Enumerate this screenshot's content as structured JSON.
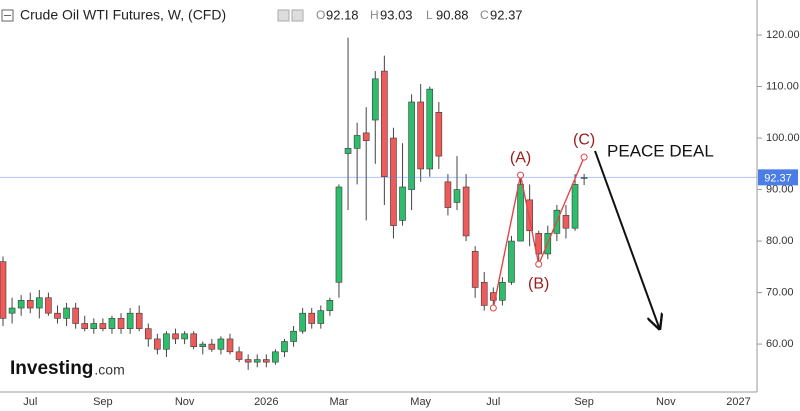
{
  "chart_data": {
    "type": "candlestick",
    "title": "Crude Oil WTI Futures, W, (CFD)",
    "ohlc_labels": [
      "O",
      "H",
      "L",
      "C"
    ],
    "watermark": [
      "Investing",
      ".com"
    ],
    "categories": [
      null,
      null,
      null,
      "Jul",
      null,
      null,
      null,
      null,
      null,
      null,
      null,
      "Sep",
      null,
      null,
      null,
      null,
      null,
      null,
      null,
      null,
      "Nov",
      null,
      null,
      null,
      null,
      null,
      null,
      null,
      null,
      "2026",
      null,
      null,
      null,
      null,
      null,
      null,
      null,
      "Mar",
      null,
      null,
      null,
      null,
      null,
      null,
      null,
      null,
      "May",
      null,
      null,
      null,
      null,
      null,
      null,
      null,
      "Jul",
      null,
      null,
      null,
      null,
      null,
      null,
      null,
      null,
      null,
      "Sep",
      null,
      null,
      null,
      null,
      null,
      null,
      null,
      null,
      "Nov",
      null,
      null,
      null,
      null,
      null,
      null,
      null,
      "2027",
      null,
      null
    ],
    "series": [
      {
        "up_color": "#2ebd6b",
        "down_color": "#ef5a5a",
        "open": [
          76,
          66,
          67,
          68.5,
          67,
          69,
          66,
          65,
          67,
          64,
          63,
          64,
          63,
          65,
          63,
          66,
          63,
          61,
          59,
          62,
          61,
          62,
          59.5,
          60,
          59,
          61,
          58.5,
          57,
          56.5,
          57,
          56.5,
          58.5,
          60.5,
          62.5,
          66,
          64,
          66.5,
          72,
          97,
          98,
          101,
          103.5,
          113,
          100,
          84,
          90,
          107,
          94,
          105,
          91.5,
          87.5,
          90.5,
          78,
          72,
          70,
          68.5,
          72,
          80,
          88,
          81.5,
          77.5,
          81.5,
          85,
          82.5,
          92.18,
          null,
          null,
          null,
          null,
          null,
          null,
          null,
          null,
          null,
          null,
          null,
          null,
          null,
          null,
          null,
          null,
          null,
          null,
          null
        ],
        "high": [
          77,
          69,
          69.5,
          70,
          70.5,
          70,
          67.5,
          68,
          68,
          65.5,
          65,
          65,
          65.5,
          66,
          67,
          67.5,
          64,
          62,
          62.5,
          63,
          62.5,
          62.5,
          60.5,
          61,
          61.5,
          62,
          59.5,
          58,
          58,
          58,
          59,
          61,
          63.5,
          67,
          67,
          67.5,
          69,
          91,
          119.5,
          103,
          106,
          113,
          116,
          102,
          99,
          108.5,
          110.5,
          110,
          107,
          93,
          96.5,
          93,
          79,
          74,
          71,
          73,
          81,
          92.5,
          91,
          82,
          83,
          87,
          87,
          93,
          93.03,
          null,
          null,
          null,
          null,
          null,
          null,
          null,
          null,
          null,
          null,
          null,
          null,
          null,
          null,
          null,
          null,
          null,
          null,
          null
        ],
        "low": [
          63.5,
          64,
          65.5,
          66,
          65,
          65.5,
          64,
          63.5,
          63,
          62.5,
          62,
          62.5,
          62,
          62,
          62,
          62.5,
          59.5,
          58,
          57.5,
          60,
          60,
          59,
          58,
          58.5,
          58,
          58,
          56.5,
          55,
          55.5,
          55.5,
          56,
          57.5,
          59.5,
          62,
          63,
          63,
          65.5,
          69,
          86,
          91,
          84,
          95,
          87,
          80.5,
          83,
          86,
          91.5,
          92.5,
          94,
          85,
          86,
          80,
          69,
          66.5,
          67,
          67.5,
          71.5,
          80,
          79,
          75,
          76.5,
          80,
          80.5,
          82,
          90.88,
          null,
          null,
          null,
          null,
          null,
          null,
          null,
          null,
          null,
          null,
          null,
          null,
          null,
          null,
          null,
          null,
          null,
          null,
          null
        ],
        "close": [
          65,
          67,
          68.5,
          67,
          69,
          66,
          65,
          67,
          64,
          63,
          64,
          63,
          65,
          63,
          66,
          63,
          61,
          59,
          62,
          61,
          62,
          59.5,
          60,
          59,
          61,
          58.5,
          57,
          56.5,
          57,
          56.5,
          58.5,
          60.5,
          62.5,
          66,
          64,
          66.5,
          68.5,
          90.5,
          98,
          100.5,
          99.5,
          111.5,
          92.5,
          83,
          90.5,
          107,
          94,
          109.5,
          96.5,
          86.5,
          90,
          81,
          71,
          67.5,
          68.5,
          72,
          80,
          91,
          82,
          77.5,
          81.5,
          86,
          82.5,
          91,
          92.37,
          null,
          null,
          null,
          null,
          null,
          null,
          null,
          null,
          null,
          null,
          null,
          null,
          null,
          null,
          null,
          null,
          null,
          null,
          null
        ]
      }
    ],
    "ylim": [
      50.7,
      126.8
    ],
    "yticks": [
      {
        "value": 60,
        "label": "60.00"
      },
      {
        "value": 70,
        "label": "70.00"
      },
      {
        "value": 80,
        "label": "80.00"
      },
      {
        "value": 90,
        "label": "90.00"
      },
      {
        "value": 100,
        "label": "100.00"
      },
      {
        "value": 110,
        "label": "110.00"
      },
      {
        "value": 120,
        "label": "120.00"
      }
    ],
    "grid": false,
    "price_line_color": "#4a7de6",
    "zigzag": {
      "color": "#e04848",
      "x": [
        54,
        57,
        59,
        64
      ],
      "values": [
        67,
        92.8,
        75.5,
        96.3
      ],
      "labels": [
        null,
        "(A)",
        "(B)",
        "(C)"
      ],
      "label_color": "#9b1c1c"
    },
    "arrow": {
      "label": "PEACE DEAL",
      "x": [
        65.2,
        72.3
      ],
      "values": [
        97.5,
        63
      ]
    }
  }
}
